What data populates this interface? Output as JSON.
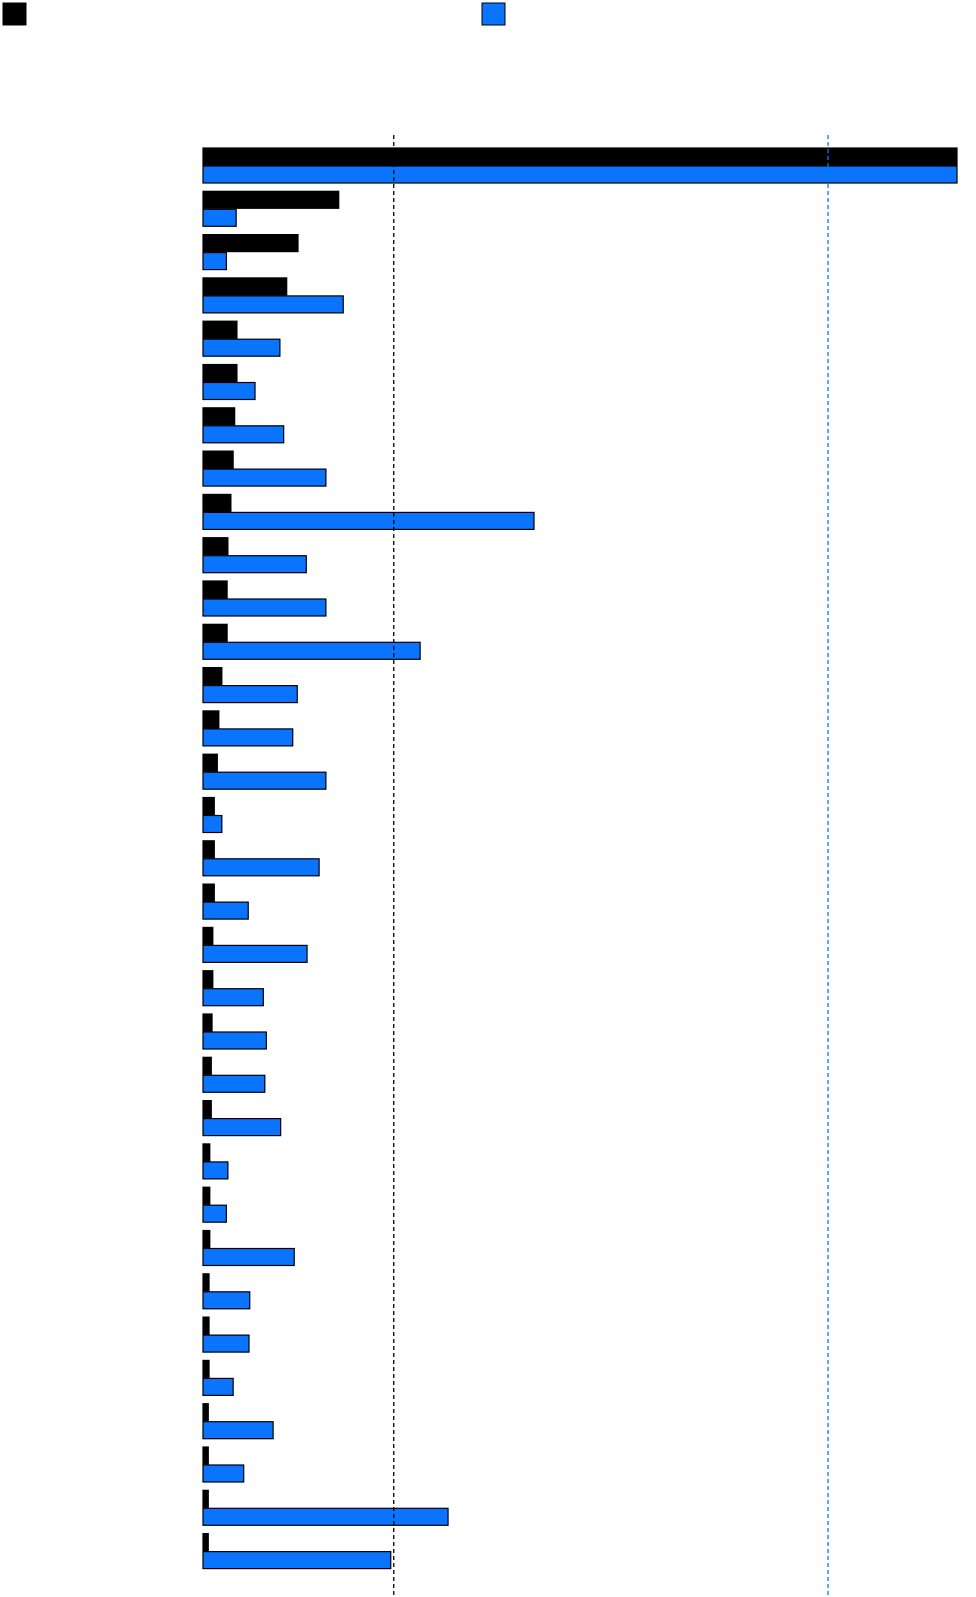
{
  "chart_data": {
    "type": "hbar",
    "categories": [
      null,
      null,
      null,
      null,
      null,
      null,
      null,
      null,
      null,
      null,
      null,
      null,
      null,
      null,
      null,
      null,
      null,
      null,
      null,
      null,
      null,
      null,
      null,
      null,
      null,
      null,
      null,
      null,
      null,
      null,
      null,
      null,
      null
    ],
    "series": [
      {
        "color": "#000000",
        "values": [
          100,
          18.0,
          12.6,
          11.1,
          4.5,
          4.5,
          4.2,
          4.0,
          3.7,
          3.3,
          3.2,
          3.2,
          2.5,
          2.1,
          1.9,
          1.5,
          1.5,
          1.5,
          1.3,
          1.3,
          1.2,
          1.1,
          1.1,
          0.9,
          0.9,
          0.9,
          0.8,
          0.8,
          0.8,
          0.7,
          0.7,
          0.7,
          0.7
        ]
      },
      {
        "color": "#0a74ff",
        "values": [
          100,
          4.4,
          3.1,
          18.6,
          10.2,
          6.9,
          10.7,
          16.3,
          43.9,
          13.7,
          16.3,
          28.8,
          12.5,
          11.9,
          16.3,
          2.5,
          15.4,
          6.0,
          13.8,
          8.0,
          8.4,
          8.2,
          10.3,
          3.3,
          3.1,
          12.1,
          6.2,
          6.1,
          4.0,
          9.3,
          5.4,
          32.5,
          24.9
        ]
      }
    ],
    "xlim": [
      0,
      100
    ],
    "reference_lines": [
      {
        "value": 25.3,
        "color": "#000000"
      },
      {
        "value": 82.9,
        "color": "#0a74ff"
      }
    ]
  }
}
